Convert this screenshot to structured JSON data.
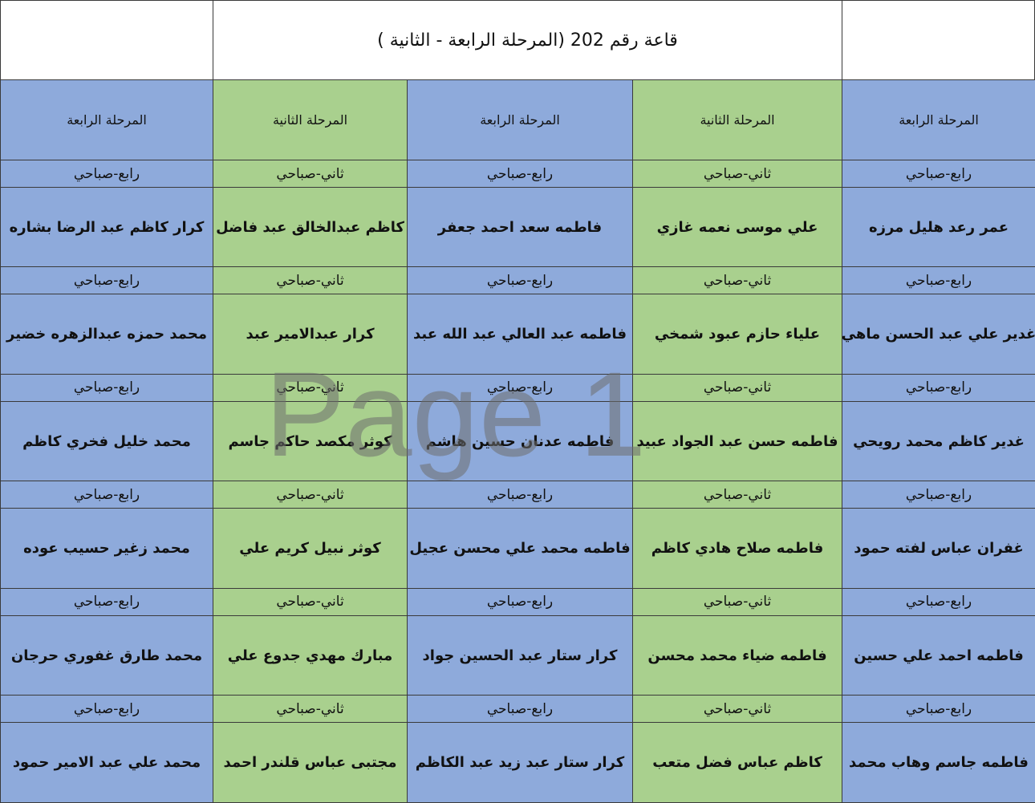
{
  "title": "قاعة رقم 202 (المرحلة الرابعة - الثانية )",
  "watermark": "Page 1",
  "header": [
    "المرحلة الرابعة",
    "المرحلة الثانية",
    "المرحلة الرابعة",
    "المرحلة الثانية",
    "المرحلة الرابعة"
  ],
  "rows": [
    {
      "shifts": [
        "رابع-صباحي",
        "ثاني-صباحي",
        "رابع-صباحي",
        "ثاني-صباحي",
        "رابع-صباحي"
      ],
      "names": [
        "عمر رعد هليل مرزه",
        "علي موسى نعمه غازي",
        "فاطمه سعد احمد جعفر",
        "كاظم عبدالخالق عبد فاضل",
        "كرار كاظم عبد الرضا بشاره"
      ]
    },
    {
      "shifts": [
        "رابع-صباحي",
        "ثاني-صباحي",
        "رابع-صباحي",
        "ثاني-صباحي",
        "رابع-صباحي"
      ],
      "names": [
        "غدير علي عبد الحسن ماهي",
        "علياء حازم عبود شمخي",
        "فاطمه عبد العالي عبد الله عبد",
        "كرار عبدالامير عبد",
        "محمد حمزه عبدالزهره خضير"
      ]
    },
    {
      "shifts": [
        "رابع-صباحي",
        "ثاني-صباحي",
        "رابع-صباحي",
        "ثاني-صباحي",
        "رابع-صباحي"
      ],
      "names": [
        "غدير كاظم محمد رويحي",
        "فاطمه حسن عبد الجواد عبيد",
        "فاطمه عدنان حسين هاشم",
        "كوثر مكصد حاكم جاسم",
        "محمد خليل فخري كاظم"
      ]
    },
    {
      "shifts": [
        "رابع-صباحي",
        "ثاني-صباحي",
        "رابع-صباحي",
        "ثاني-صباحي",
        "رابع-صباحي"
      ],
      "names": [
        "غفران عباس لفته حمود",
        "فاطمه صلاح هادي كاظم",
        "فاطمه محمد علي محسن عجيل",
        "كوثر نبيل كريم علي",
        "محمد زغير حسيب عوده"
      ]
    },
    {
      "shifts": [
        "رابع-صباحي",
        "ثاني-صباحي",
        "رابع-صباحي",
        "ثاني-صباحي",
        "رابع-صباحي"
      ],
      "names": [
        "فاطمه احمد علي حسين",
        "فاطمه ضياء محمد محسن",
        "كرار ستار عبد الحسين جواد",
        "مبارك مهدي جدوع علي",
        "محمد طارق غفوري حرجان"
      ]
    },
    {
      "shifts": [
        "رابع-صباحي",
        "ثاني-صباحي",
        "رابع-صباحي",
        "ثاني-صباحي",
        "رابع-صباحي"
      ],
      "names": [
        "فاطمه جاسم وهاب محمد",
        "كاظم عباس فضل متعب",
        "كرار ستار عبد زيد عبد الكاظم",
        "مجتبى عباس قلندر احمد",
        "محمد علي عبد الامير حمود"
      ]
    }
  ]
}
